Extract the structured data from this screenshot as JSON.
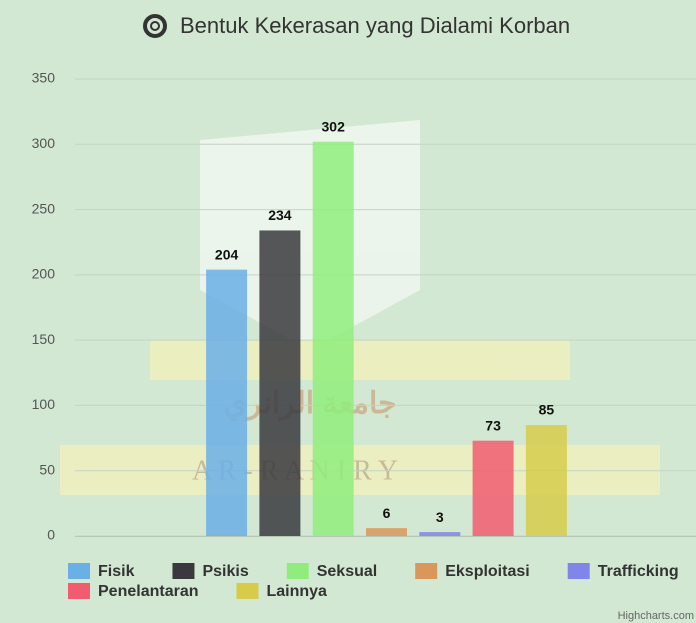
{
  "chart_data": {
    "type": "bar",
    "title": "Bentuk Kekerasan yang Dialami Korban",
    "series": [
      {
        "name": "Fisik",
        "color": "#6aafe6",
        "values": [
          204
        ]
      },
      {
        "name": "Psikis",
        "color": "#3a3a3e",
        "values": [
          234
        ]
      },
      {
        "name": "Seksual",
        "color": "#90ed7d",
        "values": [
          302
        ]
      },
      {
        "name": "Eksploitasi",
        "color": "#d9975a",
        "values": [
          6
        ]
      },
      {
        "name": "Trafficking",
        "color": "#8085e9",
        "values": [
          3
        ]
      },
      {
        "name": "Penelantaran",
        "color": "#f15c70",
        "values": [
          73
        ]
      },
      {
        "name": "Lainnya",
        "color": "#d6cc4a",
        "values": [
          85
        ]
      }
    ],
    "ylim": [
      0,
      350
    ],
    "yticks": [
      0,
      50,
      100,
      150,
      200,
      250,
      300,
      350
    ],
    "grid": true,
    "legend": "bottom",
    "credits": "Highcharts.com",
    "background_text": [
      "جامعة الرانري",
      "A R - R A N I R Y"
    ]
  }
}
